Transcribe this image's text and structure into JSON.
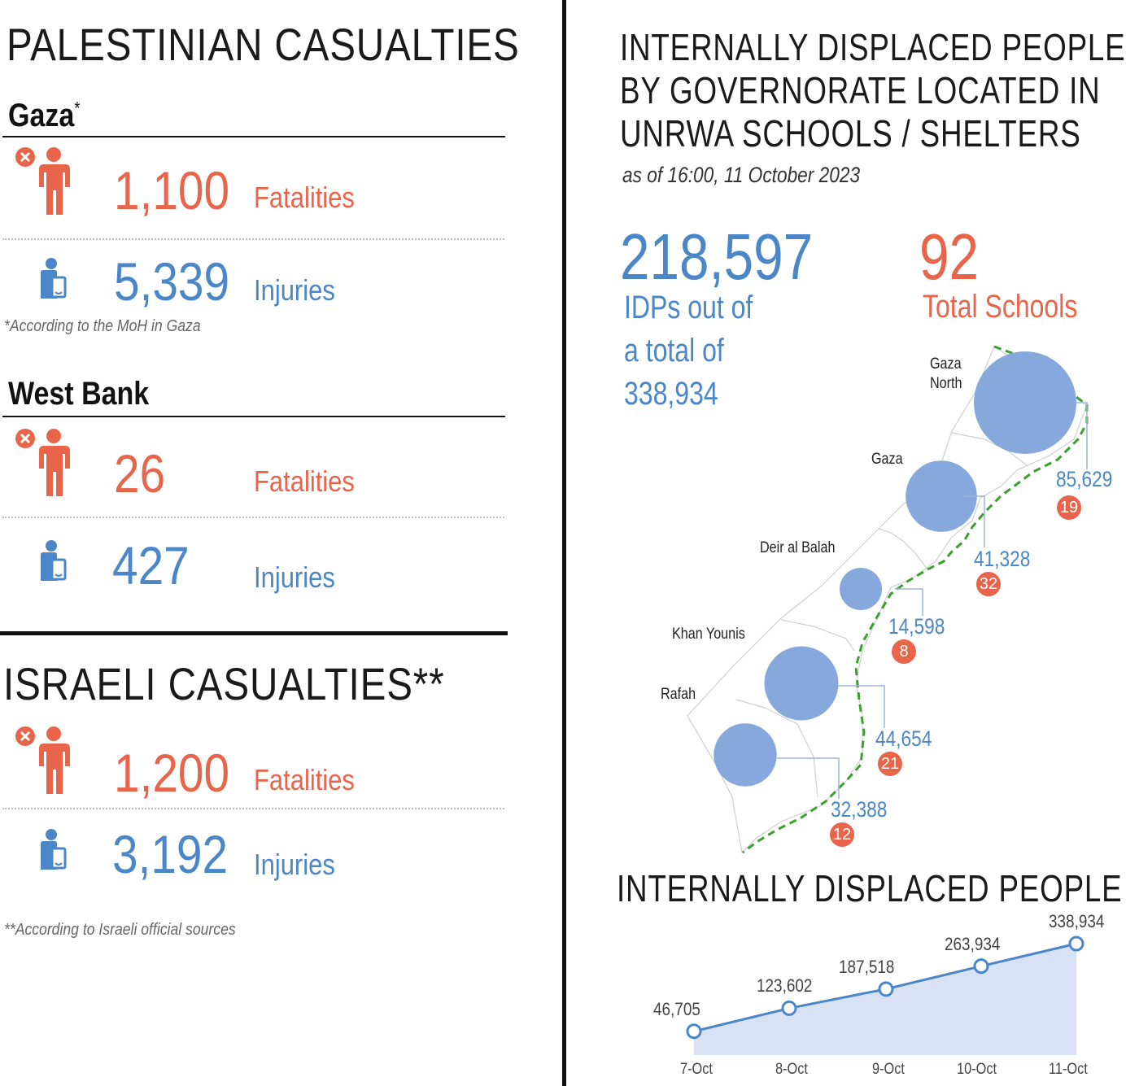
{
  "palestinian": {
    "heading": "PALESTINIAN CASUALTIES",
    "gaza": {
      "title": "Gaza",
      "title_mark": "*",
      "fatalities": "1,100",
      "fatalities_label": "Fatalities",
      "injuries": "5,339",
      "injuries_label": "Injuries",
      "note": "*According to the MoH in Gaza"
    },
    "west_bank": {
      "title": "West Bank",
      "fatalities": "26",
      "fatalities_label": "Fatalities",
      "injuries": "427",
      "injuries_label": "Injuries"
    }
  },
  "israeli": {
    "heading": "ISRAELI CASUALTIES**",
    "fatalities": "1,200",
    "fatalities_label": "Fatalities",
    "injuries": "3,192",
    "injuries_label": "Injuries",
    "note": "**According to Israeli official sources"
  },
  "icons": {
    "fatality": "person-fatality-icon",
    "injury": "person-injury-icon"
  },
  "colors": {
    "fatality": "#e8644a",
    "injury": "#4a86c8",
    "bubble": "#86a8dc",
    "area": "#d9e1f4",
    "border_dash": "#3aa02e"
  },
  "idp": {
    "title_line1": "INTERNALLY DISPLACED PEOPLE",
    "title_line2": "BY GOVERNORATE LOCATED IN",
    "title_line3": "UNRWA SCHOOLS / SHELTERS",
    "subtitle": "as of 16:00, 11 October 2023",
    "total_idps": "218,597",
    "idps_label_line1": "IDPs out of",
    "idps_label_line2": "a total of",
    "idps_label_line3": "338,934",
    "total_schools": "92",
    "schools_label": "Total Schools"
  },
  "chart_data": [
    {
      "type": "bubble-map",
      "series": [
        {
          "categories": [
            "Gaza North",
            "Gaza",
            "Deir al Balah",
            "Khan Younis",
            "Rafah"
          ],
          "name_lines": [
            [
              "Gaza",
              "North"
            ],
            [
              "Gaza"
            ],
            [
              "Deir al Balah"
            ],
            [
              "Khan Younis"
            ],
            [
              "Rafah"
            ]
          ],
          "idps": [
            85629,
            41328,
            14598,
            44654,
            32388
          ],
          "idps_labels": [
            "85,629",
            "41,328",
            "14,598",
            "44,654",
            "32,388"
          ],
          "schools": [
            19,
            32,
            8,
            21,
            12
          ]
        }
      ]
    },
    {
      "type": "area",
      "title": "INTERNALLY DISPLACED PEOPLE",
      "categories": [
        "7-Oct",
        "8-Oct",
        "9-Oct",
        "10-Oct",
        "11-Oct"
      ],
      "values": [
        46705,
        123602,
        187518,
        263934,
        338934
      ],
      "value_labels": [
        "46,705",
        "123,602",
        "187,518",
        "263,934",
        "338,934"
      ]
    }
  ]
}
